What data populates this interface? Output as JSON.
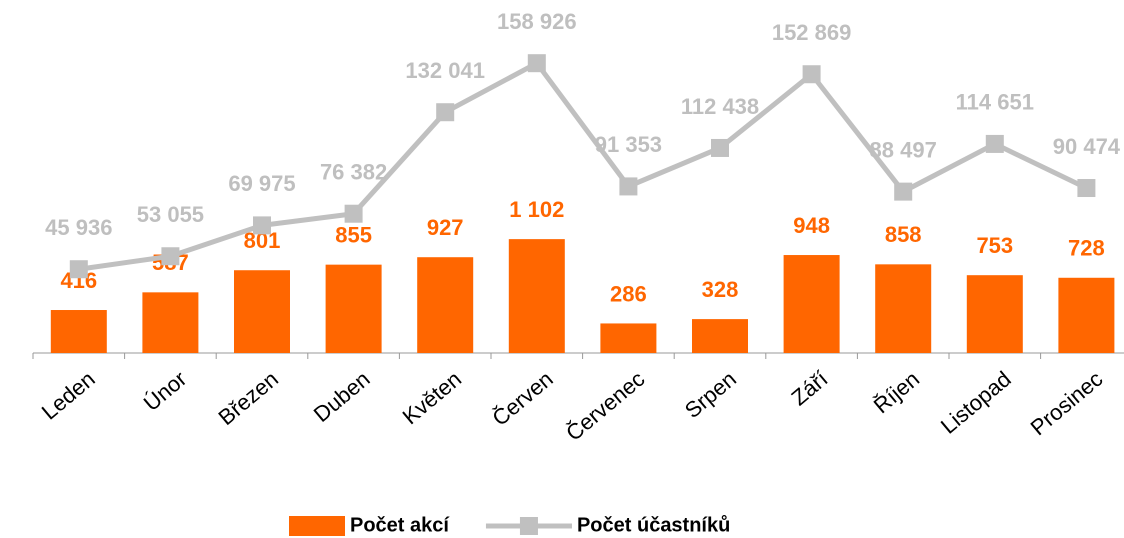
{
  "chart_data": {
    "type": "bar-line",
    "categories": [
      "Leden",
      "Únor",
      "Březen",
      "Duben",
      "Květen",
      "Červen",
      "Červenec",
      "Srpen",
      "Září",
      "Říjen",
      "Listopad",
      "Prosinec"
    ],
    "series": [
      {
        "name": "Počet akcí",
        "type": "bar",
        "color": "#ff6600",
        "values": [
          416,
          587,
          801,
          855,
          927,
          1102,
          286,
          328,
          948,
          858,
          753,
          728
        ],
        "value_labels": [
          "416",
          "587",
          "801",
          "855",
          "927",
          "1 102",
          "286",
          "328",
          "948",
          "858",
          "753",
          "728"
        ]
      },
      {
        "name": "Počet účastníků",
        "type": "line",
        "axis": "y2",
        "color": "#c0c0c0",
        "values": [
          45936,
          53055,
          69975,
          76382,
          132041,
          158926,
          91353,
          112438,
          152869,
          88497,
          114651,
          90474
        ],
        "value_labels": [
          "45 936",
          "53 055",
          "69 975",
          "76 382",
          "132 041",
          "158 926",
          "91 353",
          "112 438",
          "152 869",
          "88 497",
          "114 651",
          "90 474"
        ]
      }
    ],
    "ylim": [
      0,
      3000
    ],
    "y2lim": [
      0,
      170000
    ],
    "legend": "bottom"
  }
}
